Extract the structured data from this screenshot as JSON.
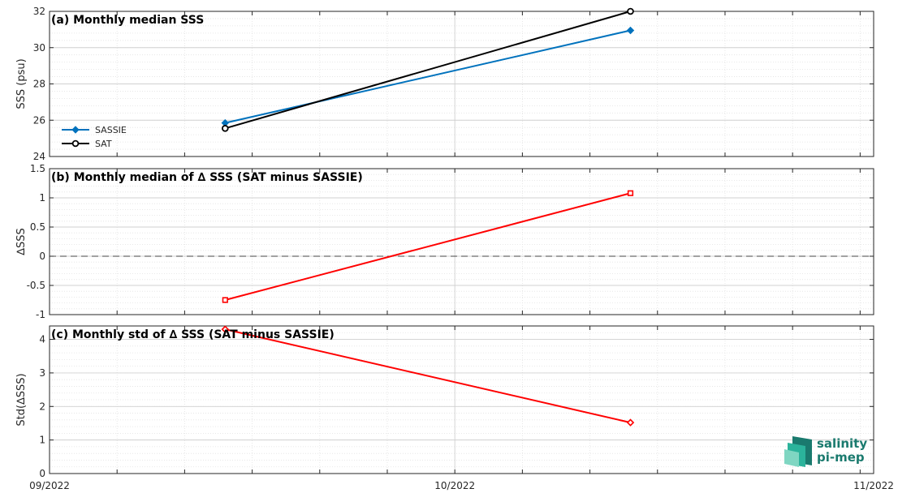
{
  "chart_data": [
    {
      "type": "line",
      "panel": "a",
      "title": "(a) Monthly median SSS",
      "ylabel": "SSS (psu)",
      "ylim": [
        24,
        32
      ],
      "yticks": [
        24,
        26,
        28,
        30,
        32
      ],
      "ytick_labels": [
        "24",
        "26",
        "28",
        "30",
        "32"
      ],
      "x": [
        "2022-09-14",
        "2022-10-14"
      ],
      "series": [
        {
          "name": "SASSIE",
          "color": "#0072BD",
          "marker": "diamond",
          "values": [
            25.85,
            30.95
          ]
        },
        {
          "name": "SAT",
          "color": "#000000",
          "marker": "circle",
          "values": [
            25.55,
            32.0
          ]
        }
      ],
      "legend": "bottom-left",
      "grid": true
    },
    {
      "type": "line",
      "panel": "b",
      "title": "(b) Monthly median of ∆ SSS (SAT minus SASSIE)",
      "ylabel": "∆SSS",
      "ylim": [
        -1,
        1.5
      ],
      "yticks": [
        -1,
        -0.5,
        0,
        0.5,
        1,
        1.5
      ],
      "ytick_labels": [
        "-1",
        "-0.5",
        "0",
        "0.5",
        "1",
        "1.5"
      ],
      "x": [
        "2022-09-14",
        "2022-10-14"
      ],
      "series": [
        {
          "color": "#FF0000",
          "marker": "square",
          "values": [
            -0.75,
            1.08
          ]
        }
      ],
      "reference_line": 0,
      "grid": true
    },
    {
      "type": "line",
      "panel": "c",
      "title": "(c) Monthly std of ∆ SSS (SAT minus SASSIE)",
      "ylabel": "Std(∆SSS)",
      "ylim": [
        0,
        4.4
      ],
      "yticks": [
        0,
        1,
        2,
        3,
        4
      ],
      "ytick_labels": [
        "0",
        "1",
        "2",
        "3",
        "4"
      ],
      "x": [
        "2022-09-14",
        "2022-10-14"
      ],
      "series": [
        {
          "color": "#FF0000",
          "marker": "diamond",
          "values": [
            4.3,
            1.52
          ]
        }
      ],
      "grid": true
    }
  ],
  "x_axis": {
    "range": [
      "2022-09-01",
      "2022-11-01"
    ],
    "tick_labels": [
      "09/2022",
      "10/2022",
      "11/2022"
    ],
    "tick_dates": [
      "2022-09-01",
      "2022-10-01",
      "2022-11-01"
    ],
    "minor_tick_dates": [
      "2022-09-06",
      "2022-09-11",
      "2022-09-16",
      "2022-09-21",
      "2022-09-26",
      "2022-10-06",
      "2022-10-11",
      "2022-10-16",
      "2022-10-21",
      "2022-10-26",
      "2022-10-31"
    ]
  },
  "logo": {
    "line1": "salinity",
    "line2": "pi-mep",
    "colors": [
      "#1a7a6e",
      "#2bb39b",
      "#7fd6c2"
    ]
  }
}
